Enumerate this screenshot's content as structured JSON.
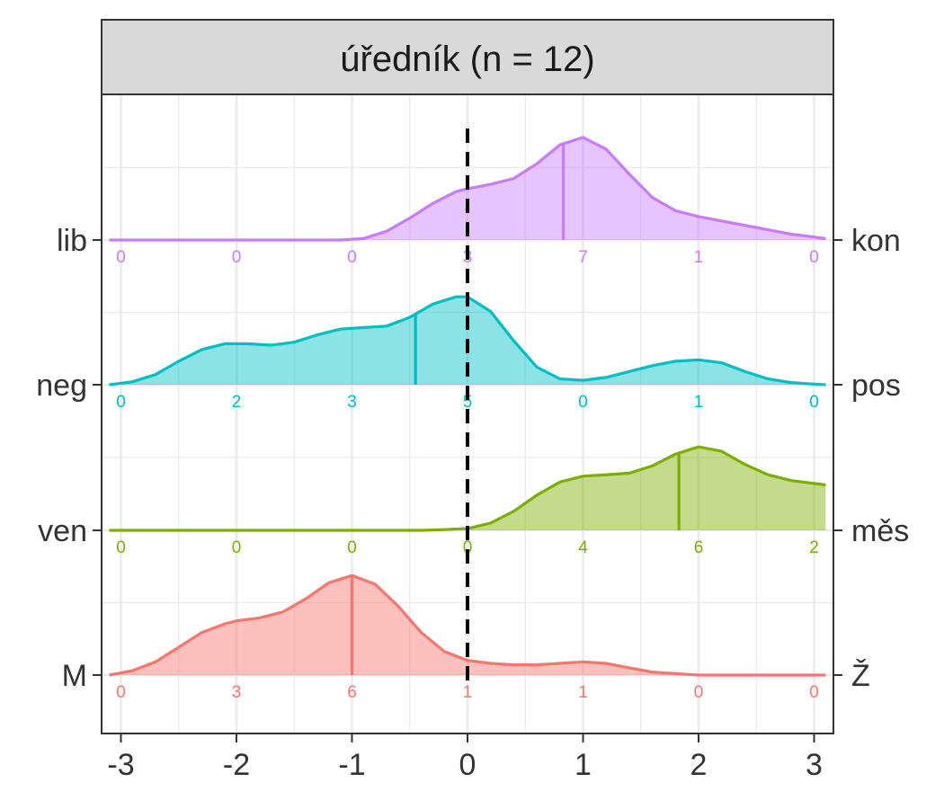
{
  "chart_data": {
    "type": "ridgeline",
    "title": "úředník (n = 12)",
    "xlabel": "",
    "ylabel": "",
    "xlim": [
      -3.1,
      3.1
    ],
    "x_ticks": [
      "-3",
      "-2",
      "-1",
      "0",
      "1",
      "2",
      "3"
    ],
    "x_tick_values": [
      -3,
      -2,
      -1,
      0,
      1,
      2,
      3
    ],
    "reference_line": {
      "x": 0,
      "style": "dashed",
      "color": "#000000"
    },
    "grid": true,
    "legend": "none",
    "count_positions": [
      -3,
      -2,
      -1,
      0,
      1,
      2,
      3
    ],
    "series": [
      {
        "left_label": "M",
        "right_label": "Ž",
        "color": "#F8766D",
        "counts": [
          0,
          3,
          6,
          1,
          1,
          0,
          0
        ],
        "mean": -1.0,
        "density": [
          [
            -3.1,
            0.0
          ],
          [
            -2.9,
            0.03
          ],
          [
            -2.7,
            0.09
          ],
          [
            -2.5,
            0.19
          ],
          [
            -2.3,
            0.29
          ],
          [
            -2.1,
            0.35
          ],
          [
            -2.0,
            0.37
          ],
          [
            -1.8,
            0.39
          ],
          [
            -1.6,
            0.43
          ],
          [
            -1.4,
            0.52
          ],
          [
            -1.2,
            0.63
          ],
          [
            -1.0,
            0.68
          ],
          [
            -0.8,
            0.62
          ],
          [
            -0.6,
            0.47
          ],
          [
            -0.4,
            0.29
          ],
          [
            -0.2,
            0.16
          ],
          [
            0.0,
            0.1
          ],
          [
            0.2,
            0.08
          ],
          [
            0.4,
            0.07
          ],
          [
            0.6,
            0.07
          ],
          [
            0.8,
            0.08
          ],
          [
            1.0,
            0.09
          ],
          [
            1.2,
            0.08
          ],
          [
            1.4,
            0.05
          ],
          [
            1.6,
            0.02
          ],
          [
            1.8,
            0.01
          ],
          [
            2.0,
            0.0
          ],
          [
            3.1,
            0.0
          ]
        ]
      },
      {
        "left_label": "ven",
        "right_label": "měs",
        "color": "#7CAE00",
        "counts": [
          0,
          0,
          0,
          0,
          4,
          6,
          2
        ],
        "mean": 1.83,
        "density": [
          [
            -3.1,
            0.0
          ],
          [
            -0.4,
            0.0
          ],
          [
            -0.2,
            0.005
          ],
          [
            0.0,
            0.012
          ],
          [
            0.2,
            0.05
          ],
          [
            0.4,
            0.13
          ],
          [
            0.6,
            0.24
          ],
          [
            0.8,
            0.33
          ],
          [
            1.0,
            0.37
          ],
          [
            1.2,
            0.38
          ],
          [
            1.4,
            0.39
          ],
          [
            1.6,
            0.44
          ],
          [
            1.8,
            0.52
          ],
          [
            2.0,
            0.57
          ],
          [
            2.2,
            0.54
          ],
          [
            2.4,
            0.45
          ],
          [
            2.6,
            0.38
          ],
          [
            2.8,
            0.34
          ],
          [
            3.0,
            0.32
          ],
          [
            3.1,
            0.31
          ]
        ]
      },
      {
        "left_label": "neg",
        "right_label": "pos",
        "color": "#00BFC4",
        "counts": [
          0,
          2,
          3,
          5,
          0,
          1,
          0
        ],
        "mean": -0.45,
        "density": [
          [
            -3.1,
            0.0
          ],
          [
            -2.9,
            0.02
          ],
          [
            -2.7,
            0.07
          ],
          [
            -2.5,
            0.16
          ],
          [
            -2.3,
            0.24
          ],
          [
            -2.1,
            0.28
          ],
          [
            -1.9,
            0.28
          ],
          [
            -1.7,
            0.27
          ],
          [
            -1.5,
            0.29
          ],
          [
            -1.3,
            0.34
          ],
          [
            -1.1,
            0.38
          ],
          [
            -0.9,
            0.39
          ],
          [
            -0.7,
            0.4
          ],
          [
            -0.5,
            0.46
          ],
          [
            -0.3,
            0.55
          ],
          [
            -0.1,
            0.6
          ],
          [
            0.0,
            0.6
          ],
          [
            0.2,
            0.5
          ],
          [
            0.4,
            0.3
          ],
          [
            0.6,
            0.12
          ],
          [
            0.8,
            0.04
          ],
          [
            1.0,
            0.03
          ],
          [
            1.2,
            0.05
          ],
          [
            1.4,
            0.09
          ],
          [
            1.6,
            0.13
          ],
          [
            1.8,
            0.16
          ],
          [
            2.0,
            0.17
          ],
          [
            2.2,
            0.15
          ],
          [
            2.4,
            0.09
          ],
          [
            2.6,
            0.04
          ],
          [
            2.8,
            0.015
          ],
          [
            3.0,
            0.004
          ],
          [
            3.1,
            0.0
          ]
        ]
      },
      {
        "left_label": "lib",
        "right_label": "kon",
        "color": "#C77CFF",
        "counts": [
          0,
          0,
          0,
          3,
          7,
          1,
          0
        ],
        "mean": 0.83,
        "density": [
          [
            -3.1,
            0.0
          ],
          [
            -1.1,
            0.0
          ],
          [
            -0.9,
            0.01
          ],
          [
            -0.7,
            0.06
          ],
          [
            -0.5,
            0.15
          ],
          [
            -0.3,
            0.25
          ],
          [
            -0.1,
            0.33
          ],
          [
            0.0,
            0.35
          ],
          [
            0.2,
            0.38
          ],
          [
            0.4,
            0.42
          ],
          [
            0.6,
            0.52
          ],
          [
            0.8,
            0.65
          ],
          [
            1.0,
            0.7
          ],
          [
            1.2,
            0.62
          ],
          [
            1.4,
            0.45
          ],
          [
            1.6,
            0.29
          ],
          [
            1.8,
            0.2
          ],
          [
            2.0,
            0.16
          ],
          [
            2.2,
            0.13
          ],
          [
            2.4,
            0.1
          ],
          [
            2.6,
            0.07
          ],
          [
            2.8,
            0.04
          ],
          [
            3.0,
            0.02
          ],
          [
            3.1,
            0.01
          ]
        ]
      }
    ]
  }
}
